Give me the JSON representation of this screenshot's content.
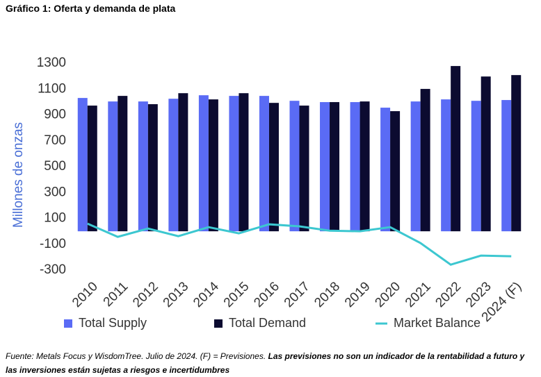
{
  "chart_data": {
    "type": "bar",
    "title": "Gráfico 1: Oferta y demanda de plata",
    "y_label": "Millones de onzas",
    "categories": [
      "2010",
      "2011",
      "2012",
      "2013",
      "2014",
      "2015",
      "2016",
      "2017",
      "2018",
      "2019",
      "2020",
      "2021",
      "2022",
      "2023",
      "2024 (F)"
    ],
    "series": [
      {
        "name": "Total Supply",
        "type": "bar",
        "color": "#5a6bf5",
        "values": [
          1031,
          1004,
          1004,
          1025,
          1052,
          1047,
          1047,
          1009,
          999,
          999,
          956,
          1004,
          1020,
          1009,
          1015
        ]
      },
      {
        "name": "Total Demand",
        "type": "bar",
        "color": "#0c0b30",
        "values": [
          972,
          1047,
          983,
          1068,
          1020,
          1068,
          993,
          972,
          999,
          1004,
          929,
          1101,
          1278,
          1197,
          1208
        ]
      },
      {
        "name": "Market Balance",
        "type": "line",
        "color": "#3cc7d0",
        "values": [
          59,
          -43,
          21,
          -38,
          32,
          -16,
          54,
          38,
          5,
          0,
          32,
          -91,
          -258,
          -188,
          -193
        ]
      }
    ],
    "ylim": [
      -300,
      1300
    ],
    "yticks": [
      -300,
      -100,
      100,
      300,
      500,
      700,
      900,
      1100,
      1300
    ],
    "grid": false,
    "source": "Fuente: Metals Focus y WisdomTree. Julio de 2024. (F) = Previsiones.",
    "note": "Las previsiones no son un indicador de la rentabilidad a futuro y las inversiones están sujetas a riesgos e incertidumbres"
  }
}
